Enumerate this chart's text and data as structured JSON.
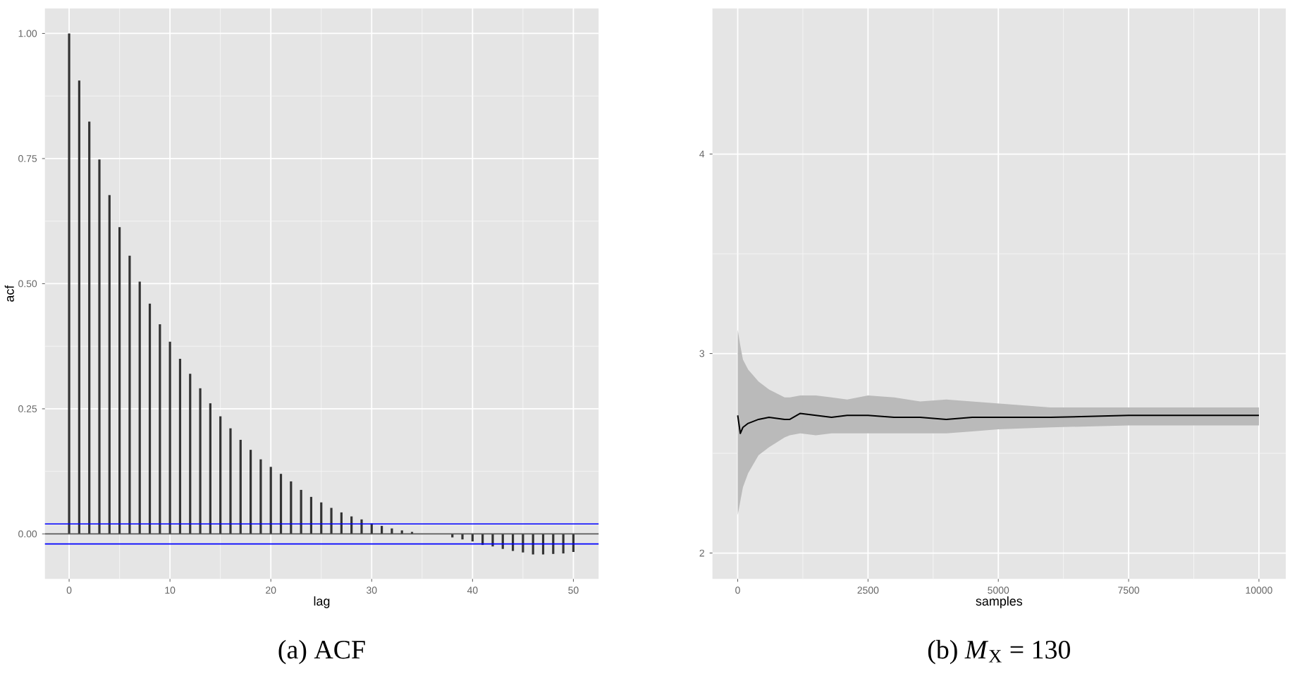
{
  "chart_data": [
    {
      "type": "bar",
      "title": "(a) ACF",
      "xlabel": "lag",
      "ylabel": "acf",
      "x": [
        0,
        1,
        2,
        3,
        4,
        5,
        6,
        7,
        8,
        9,
        10,
        11,
        12,
        13,
        14,
        15,
        16,
        17,
        18,
        19,
        20,
        21,
        22,
        23,
        24,
        25,
        26,
        27,
        28,
        29,
        30,
        31,
        32,
        33,
        34,
        35,
        36,
        37,
        38,
        39,
        40,
        41,
        42,
        43,
        44,
        45,
        46,
        47,
        48,
        49,
        50
      ],
      "series": [
        {
          "color": "#333333",
          "values": [
            1.0,
            0.906,
            0.824,
            0.748,
            0.677,
            0.613,
            0.556,
            0.504,
            0.46,
            0.419,
            0.384,
            0.35,
            0.32,
            0.291,
            0.261,
            0.235,
            0.211,
            0.188,
            0.168,
            0.149,
            0.134,
            0.12,
            0.105,
            0.088,
            0.074,
            0.063,
            0.052,
            0.043,
            0.035,
            0.029,
            0.021,
            0.016,
            0.011,
            0.007,
            0.004,
            null,
            0.0,
            null,
            -0.007,
            -0.011,
            -0.015,
            -0.022,
            -0.025,
            -0.03,
            -0.034,
            -0.037,
            -0.041,
            -0.041,
            -0.04,
            -0.039,
            -0.036
          ]
        }
      ],
      "xlim": [
        -2.4,
        52.5
      ],
      "ylim": [
        -0.09,
        1.05
      ],
      "xticks": [
        0,
        10,
        20,
        30,
        40,
        50
      ],
      "yticks": [
        {
          "value": 0,
          "label": "0.00"
        },
        {
          "value": 0.25,
          "label": "0.25"
        },
        {
          "value": 0.5,
          "label": "0.50"
        },
        {
          "value": 0.75,
          "label": "0.75"
        },
        {
          "value": 1,
          "label": "1.00"
        }
      ],
      "ref_lines": [
        {
          "axis": "y",
          "value": 0,
          "color": "#555555"
        },
        {
          "axis": "y",
          "value": 0.02,
          "color": "#0000ff"
        },
        {
          "axis": "y",
          "value": -0.02,
          "color": "#0000ff"
        }
      ],
      "grid": true
    },
    {
      "type": "line",
      "title": "(b) *M*$_{X}$ = 130",
      "xlabel": "samples",
      "x": [
        0,
        50,
        100,
        200,
        400,
        600,
        900,
        1000,
        1200,
        1500,
        1800,
        2100,
        2500,
        3000,
        3500,
        4000,
        4500,
        5000,
        6000,
        7500,
        9000,
        10000
      ],
      "series": [
        {
          "color": "#000000",
          "values": [
            2.69,
            2.6,
            2.63,
            2.65,
            2.67,
            2.68,
            2.67,
            2.67,
            2.7,
            2.69,
            2.68,
            2.69,
            2.69,
            2.68,
            2.68,
            2.67,
            2.68,
            2.68,
            2.68,
            2.69,
            2.69,
            2.69
          ],
          "lower": [
            2.19,
            2.26,
            2.33,
            2.4,
            2.49,
            2.53,
            2.58,
            2.59,
            2.6,
            2.59,
            2.6,
            2.6,
            2.6,
            2.6,
            2.6,
            2.6,
            2.61,
            2.62,
            2.63,
            2.64,
            2.64,
            2.64
          ],
          "upper": [
            3.12,
            3.04,
            2.97,
            2.92,
            2.86,
            2.82,
            2.78,
            2.78,
            2.79,
            2.79,
            2.78,
            2.77,
            2.79,
            2.78,
            2.76,
            2.77,
            2.76,
            2.75,
            2.73,
            2.73,
            2.73,
            2.73
          ]
        }
      ],
      "xlim": [
        -485,
        10515
      ],
      "ylim": [
        1.87,
        4.73
      ],
      "xticks": [
        0,
        2500,
        5000,
        7500,
        10000
      ],
      "yticks": [
        2,
        3,
        4
      ],
      "grid": true
    }
  ]
}
